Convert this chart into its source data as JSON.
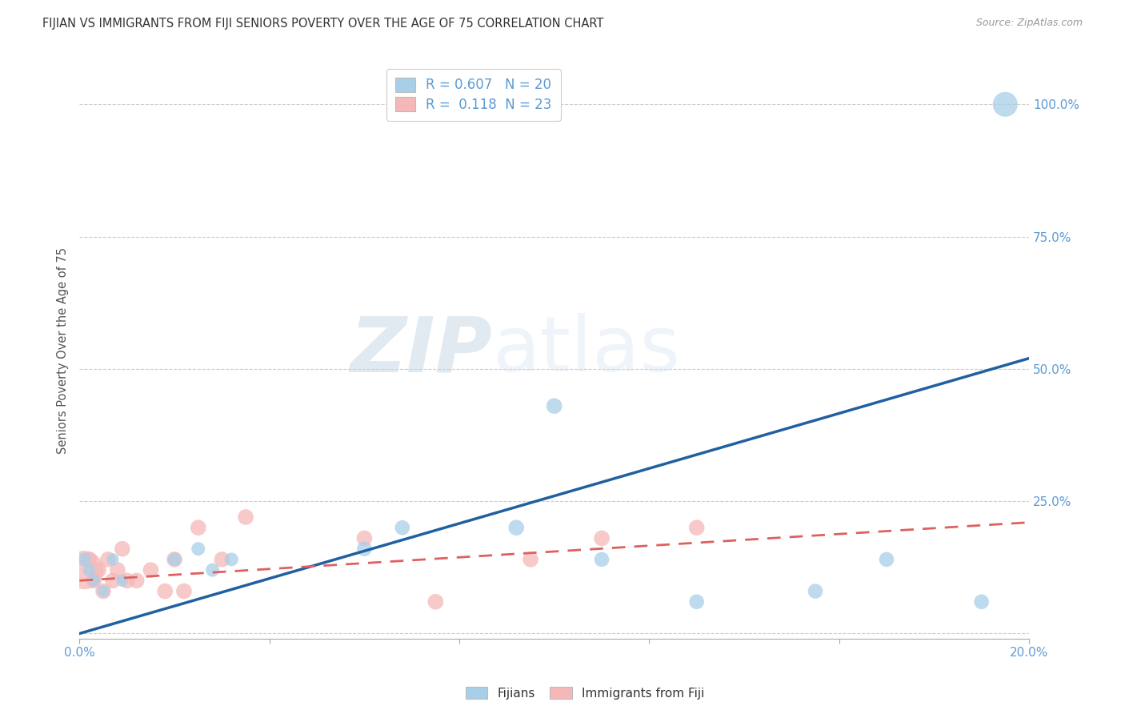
{
  "title": "FIJIAN VS IMMIGRANTS FROM FIJI SENIORS POVERTY OVER THE AGE OF 75 CORRELATION CHART",
  "source": "Source: ZipAtlas.com",
  "ylabel": "Seniors Poverty Over the Age of 75",
  "watermark_zip": "ZIP",
  "watermark_atlas": "atlas",
  "xmin": 0.0,
  "xmax": 0.2,
  "ymin": -0.01,
  "ymax": 1.08,
  "xticks": [
    0.0,
    0.04,
    0.08,
    0.12,
    0.16,
    0.2
  ],
  "ytick_positions": [
    0.0,
    0.25,
    0.5,
    0.75,
    1.0
  ],
  "ytick_right_labels": [
    "",
    "25.0%",
    "50.0%",
    "75.0%",
    "100.0%"
  ],
  "xtick_labels": [
    "0.0%",
    "",
    "",
    "",
    "",
    "20.0%"
  ],
  "legend_fijians_R": "0.607",
  "legend_fijians_N": "20",
  "legend_immigrants_R": "0.118",
  "legend_immigrants_N": "23",
  "fijians_color": "#a8cfe8",
  "immigrants_color": "#f5b8b8",
  "trend_fijians_color": "#2060a0",
  "trend_immigrants_color": "#e06060",
  "fijians_x": [
    0.001,
    0.002,
    0.003,
    0.005,
    0.007,
    0.009,
    0.02,
    0.025,
    0.028,
    0.032,
    0.06,
    0.068,
    0.092,
    0.1,
    0.11,
    0.13,
    0.155,
    0.17,
    0.19,
    0.195
  ],
  "fijians_y": [
    0.14,
    0.12,
    0.1,
    0.08,
    0.14,
    0.1,
    0.14,
    0.16,
    0.12,
    0.14,
    0.16,
    0.2,
    0.2,
    0.43,
    0.14,
    0.06,
    0.08,
    0.14,
    0.06,
    1.0
  ],
  "fijians_size": [
    150,
    120,
    120,
    120,
    120,
    120,
    150,
    150,
    150,
    150,
    180,
    180,
    200,
    200,
    180,
    180,
    180,
    180,
    180,
    500
  ],
  "immigrants_x": [
    0.001,
    0.002,
    0.003,
    0.004,
    0.005,
    0.006,
    0.007,
    0.008,
    0.009,
    0.01,
    0.012,
    0.015,
    0.018,
    0.02,
    0.022,
    0.025,
    0.03,
    0.035,
    0.06,
    0.075,
    0.095,
    0.11,
    0.13
  ],
  "immigrants_y": [
    0.12,
    0.14,
    0.1,
    0.12,
    0.08,
    0.14,
    0.1,
    0.12,
    0.16,
    0.1,
    0.1,
    0.12,
    0.08,
    0.14,
    0.08,
    0.2,
    0.14,
    0.22,
    0.18,
    0.06,
    0.14,
    0.18,
    0.2
  ],
  "immigrants_size": [
    1200,
    200,
    200,
    200,
    200,
    200,
    200,
    200,
    200,
    200,
    200,
    200,
    200,
    200,
    200,
    200,
    200,
    200,
    200,
    200,
    200,
    200,
    200
  ],
  "grid_color": "#cccccc",
  "bg_color": "#ffffff",
  "title_color": "#333333",
  "axis_label_color": "#555555",
  "tick_color": "#5b9bd5"
}
